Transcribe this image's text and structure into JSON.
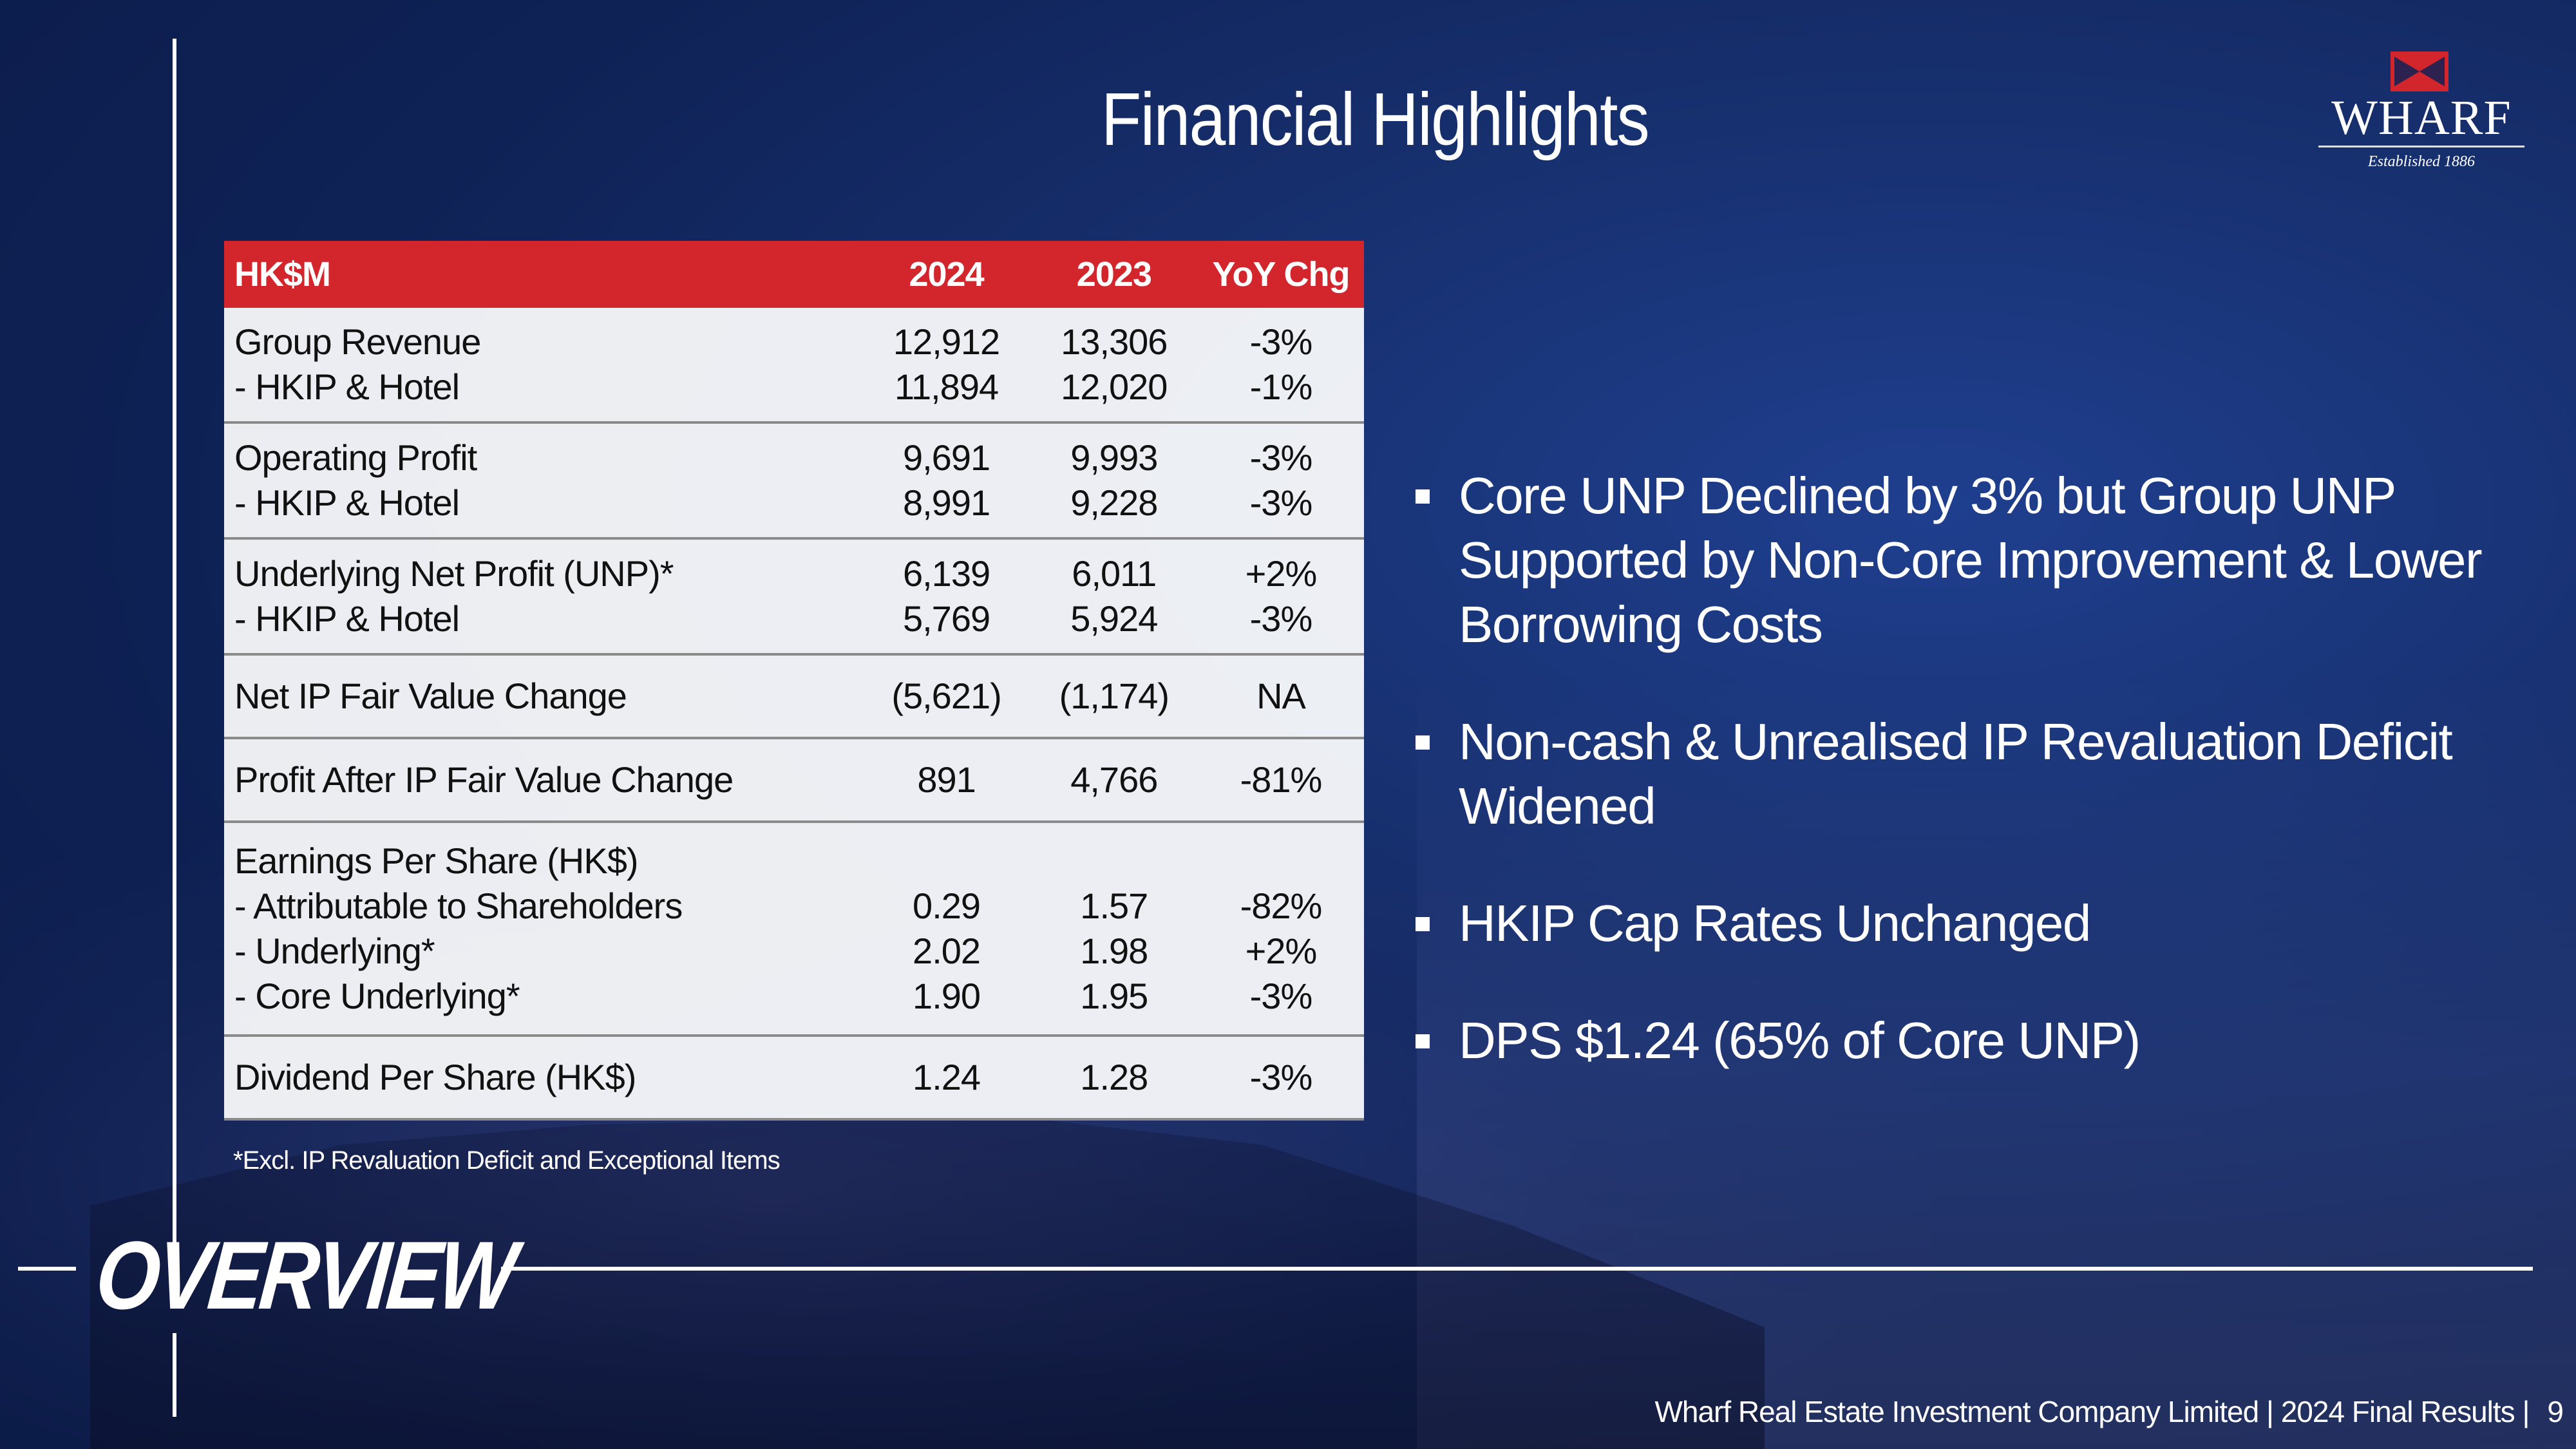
{
  "title": "Financial Highlights",
  "logo": {
    "name": "WHARF",
    "tagline": "Established 1886"
  },
  "table": {
    "headers": [
      "HK$M",
      "2024",
      "2023",
      "YoY Chg"
    ],
    "groups": [
      {
        "rows": [
          {
            "item": "Group Revenue",
            "y2024": "12,912",
            "y2023": "13,306",
            "chg": "-3%"
          },
          {
            "item": "- HKIP & Hotel",
            "y2024": "11,894",
            "y2023": "12,020",
            "chg": "-1%"
          }
        ]
      },
      {
        "rows": [
          {
            "item": "Operating Profit",
            "y2024": "9,691",
            "y2023": "9,993",
            "chg": "-3%"
          },
          {
            "item": "- HKIP & Hotel",
            "y2024": "8,991",
            "y2023": "9,228",
            "chg": "-3%"
          }
        ]
      },
      {
        "rows": [
          {
            "item": "Underlying Net Profit (UNP)*",
            "y2024": "6,139",
            "y2023": "6,011",
            "chg": "+2%"
          },
          {
            "item": "- HKIP & Hotel",
            "y2024": "5,769",
            "y2023": "5,924",
            "chg": "-3%"
          }
        ]
      },
      {
        "rows": [
          {
            "item": "Net IP Fair Value Change",
            "y2024": "(5,621)",
            "y2023": "(1,174)",
            "chg": "NA"
          }
        ]
      },
      {
        "rows": [
          {
            "item": "Profit After IP Fair Value Change",
            "y2024": "891",
            "y2023": "4,766",
            "chg": "-81%"
          }
        ]
      },
      {
        "rows": [
          {
            "item": "Earnings Per Share (HK$)",
            "y2024": "",
            "y2023": "",
            "chg": ""
          },
          {
            "item": "- Attributable to Shareholders",
            "y2024": "0.29",
            "y2023": "1.57",
            "chg": "-82%"
          },
          {
            "item": "- Underlying*",
            "y2024": "2.02",
            "y2023": "1.98",
            "chg": "+2%"
          },
          {
            "item": "- Core Underlying*",
            "y2024": "1.90",
            "y2023": "1.95",
            "chg": "-3%"
          }
        ]
      },
      {
        "rows": [
          {
            "item": "Dividend Per Share (HK$)",
            "y2024": "1.24",
            "y2023": "1.28",
            "chg": "-3%"
          }
        ]
      }
    ]
  },
  "footnote": "*Excl. IP Revaluation Deficit and Exceptional Items",
  "bullets": [
    "Core UNP Declined by 3% but Group UNP Supported by Non-Core Improvement & Lower Borrowing Costs",
    "Non-cash & Unrealised IP Revaluation Deficit Widened",
    "HKIP Cap Rates Unchanged",
    "DPS $1.24 (65% of Core UNP)"
  ],
  "section_label": "OVERVIEW",
  "footer": {
    "text": "Wharf Real Estate Investment Company Limited | 2024 Final Results |",
    "page": "9"
  },
  "colors": {
    "background": "#0f2256",
    "header_red": "#d3252c",
    "text": "#ffffff"
  }
}
